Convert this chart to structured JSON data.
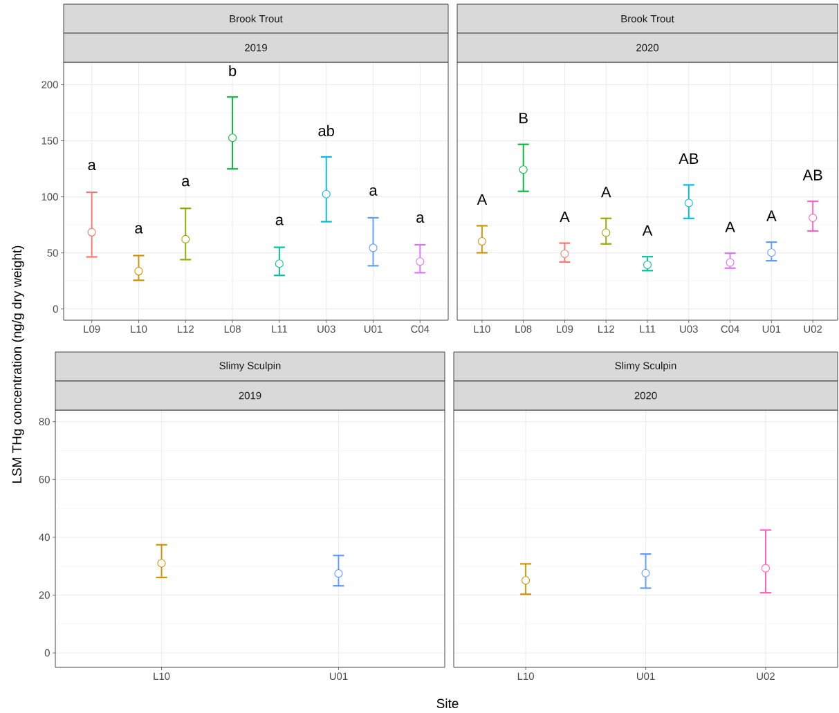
{
  "chart_data": [
    {
      "type": "scatter",
      "title": "Brook Trout",
      "subtitle": "2019",
      "ylabel": "LSM THg concentration (ng/g dry weight)",
      "categories": [
        "L09",
        "L10",
        "L12",
        "L08",
        "L11",
        "U03",
        "U01",
        "C04"
      ],
      "values": [
        68.4,
        33.7,
        62.2,
        152.6,
        40.4,
        102.4,
        54.5,
        42.3
      ],
      "errors": [
        [
          46.4,
          104
        ],
        [
          25.6,
          47.6
        ],
        [
          44,
          89.7
        ],
        [
          124.9,
          189
        ],
        [
          29.9,
          55
        ],
        [
          77.8,
          135.6
        ],
        [
          38.5,
          81.3
        ],
        [
          32.3,
          57.2
        ]
      ],
      "colors": [
        "#f8766d",
        "#d39200",
        "#93aa00",
        "#00ba38",
        "#00c19f",
        "#00b9e3",
        "#619cff",
        "#db72fb"
      ],
      "ylim": [
        -10,
        220
      ],
      "yticks": [
        0,
        50,
        100,
        150,
        200
      ],
      "grid": true,
      "marker": "circle",
      "annotations": [
        "a",
        "a",
        "a",
        "b",
        "a",
        "ab",
        "a",
        "a"
      ]
    },
    {
      "type": "scatter",
      "title": "Brook Trout",
      "subtitle": "2020",
      "categories": [
        "L10",
        "L08",
        "L09",
        "L12",
        "L11",
        "U03",
        "C04",
        "U01",
        "U02"
      ],
      "values": [
        60.3,
        124.3,
        49.2,
        68,
        39.3,
        94.5,
        41.5,
        50.3,
        81.2
      ],
      "errors": [
        [
          50.1,
          74.2
        ],
        [
          104.9,
          146.8
        ],
        [
          41.9,
          58.7
        ],
        [
          58,
          80.8
        ],
        [
          34.2,
          46.6
        ],
        [
          80.8,
          110.6
        ],
        [
          36.4,
          49.7
        ],
        [
          43,
          59.6
        ],
        [
          69.5,
          96
        ]
      ],
      "colors": [
        "#d39200",
        "#00ba38",
        "#f8766d",
        "#93aa00",
        "#00c19f",
        "#00b9e3",
        "#db72fb",
        "#619cff",
        "#ff61c3"
      ],
      "ylim": [
        -10,
        220
      ],
      "yticks": [
        0,
        50,
        100,
        150,
        200
      ],
      "tick_labels": "x",
      "grid": true,
      "marker": "circle",
      "annotations": [
        "A",
        "B",
        "A",
        "A",
        "A",
        "AB",
        "A",
        "A",
        "AB"
      ]
    },
    {
      "type": "scatter",
      "title": "Slimy Sculpin",
      "subtitle": "2019",
      "xlabel": "Site",
      "categories": [
        "L10",
        "U01"
      ],
      "values": [
        31,
        27.5
      ],
      "errors": [
        [
          26.1,
          37.4
        ],
        [
          23.2,
          33.7
        ]
      ],
      "colors": [
        "#d39200",
        "#619cff"
      ],
      "ylim": [
        -5,
        84
      ],
      "yticks": [
        0,
        20,
        40,
        60,
        80
      ],
      "grid": true,
      "marker": "circle"
    },
    {
      "type": "scatter",
      "title": "Slimy Sculpin",
      "subtitle": "2020",
      "categories": [
        "L10",
        "U01",
        "U02"
      ],
      "values": [
        25.1,
        27.6,
        29.3
      ],
      "errors": [
        [
          20.3,
          30.8
        ],
        [
          22.4,
          34.2
        ],
        [
          20.8,
          42.5
        ]
      ],
      "colors": [
        "#d39200",
        "#619cff",
        "#ff61c3"
      ],
      "ylim": [
        -5,
        84
      ],
      "yticks": [
        0,
        20,
        40,
        60,
        80
      ],
      "tick_labels": "x",
      "grid": true,
      "marker": "circle"
    }
  ]
}
